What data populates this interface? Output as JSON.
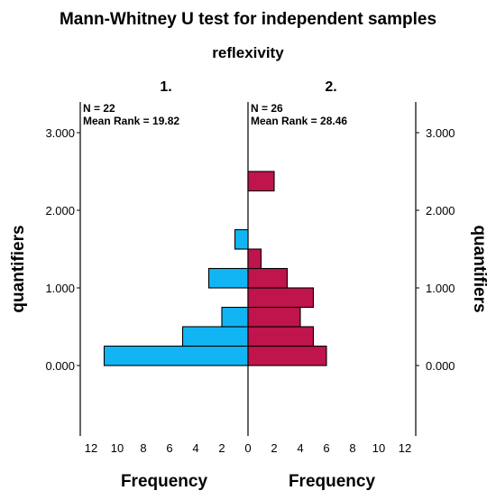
{
  "chart_data": {
    "type": "bar",
    "title": "Mann-Whitney U test for independent samples",
    "subtitle": "reflexivity",
    "ylabel_left": "quantifiers",
    "ylabel_right": "quantifiers",
    "xlabel_left": "Frequency",
    "xlabel_right": "Frequency",
    "y_ticks": [
      "0.000",
      "1.000",
      "2.000",
      "3.000"
    ],
    "x_ticks": [
      "12",
      "10",
      "8",
      "6",
      "4",
      "2",
      "0",
      "2",
      "4",
      "6",
      "8",
      "10",
      "12"
    ],
    "xlim": [
      0,
      12
    ],
    "ylim": [
      -0.7,
      3.1
    ],
    "bin_width": 0.25,
    "groups": [
      {
        "name": "1.",
        "n_label": "N = 22",
        "mean_rank_label": "Mean Rank = 19.82",
        "color": "#12B5F3",
        "side": "left",
        "bins": [
          {
            "y": 0.125,
            "count": 11
          },
          {
            "y": 0.375,
            "count": 5
          },
          {
            "y": 0.625,
            "count": 2
          },
          {
            "y": 1.125,
            "count": 3
          },
          {
            "y": 1.625,
            "count": 1
          }
        ]
      },
      {
        "name": "2.",
        "n_label": "N = 26",
        "mean_rank_label": "Mean Rank = 28.46",
        "color": "#C0144C",
        "side": "right",
        "bins": [
          {
            "y": 0.125,
            "count": 6
          },
          {
            "y": 0.375,
            "count": 5
          },
          {
            "y": 0.625,
            "count": 4
          },
          {
            "y": 0.875,
            "count": 5
          },
          {
            "y": 1.125,
            "count": 3
          },
          {
            "y": 1.375,
            "count": 1
          },
          {
            "y": 2.375,
            "count": 2
          }
        ]
      }
    ],
    "grid": false,
    "legend": "none"
  }
}
